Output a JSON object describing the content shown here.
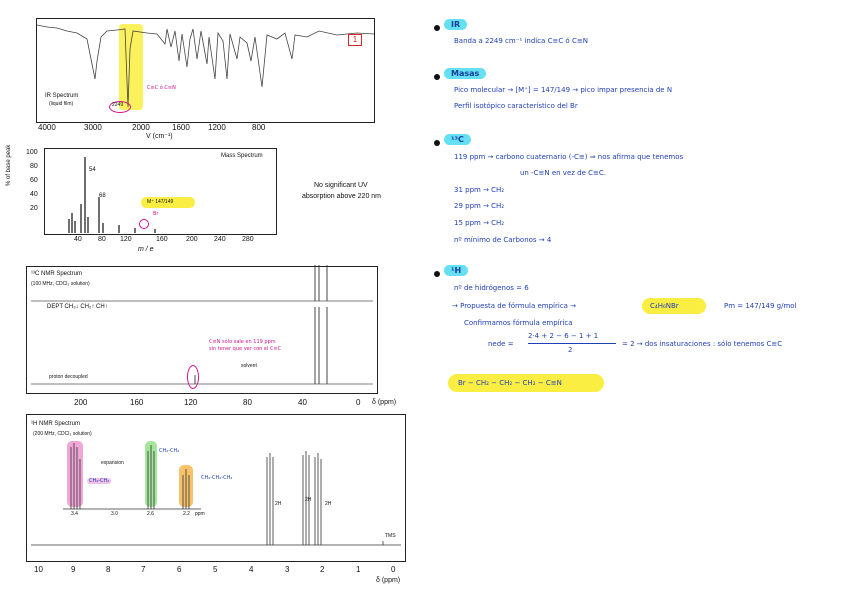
{
  "page_number": "1",
  "left": {
    "ir": {
      "title": "IR Spectrum",
      "subtitle": "(liquid film)",
      "ticks": [
        "4000",
        "3000",
        "2000",
        "1600",
        "1200",
        "800"
      ],
      "xlabel": "V (cm⁻¹)",
      "peak_label": "2249",
      "note": "C≡C ó C≡N"
    },
    "mass": {
      "title": "Mass Spectrum",
      "ylabel": "% of base peak",
      "yticks": [
        "100",
        "80",
        "60",
        "40",
        "20"
      ],
      "xticks": [
        "40",
        "80",
        "120",
        "160",
        "200",
        "240",
        "280"
      ],
      "xlabel": "m / e",
      "peak_54": "54",
      "peak_68": "68",
      "m_plus": "M⁺  147/149",
      "br_note": "Br"
    },
    "uv_note": [
      "No significant UV",
      "absorption above 220 nm"
    ],
    "c13": {
      "title": "¹³C NMR Spectrum",
      "subtitle": "(100 MHz, CDCl₃ solution)",
      "dept": "DEPT  CH₃↓ CH₂↑ CH↑",
      "decoupled": "proton decoupled",
      "solvent": "solvent",
      "xticks": [
        "200",
        "160",
        "120",
        "80",
        "40",
        "0"
      ],
      "xlabel": "δ (ppm)",
      "note": [
        "C≡N sólo sale en 119 ppm",
        "sin tener que ver con el C≡C"
      ]
    },
    "h1": {
      "title": "¹H NMR Spectrum",
      "subtitle": "(200 MHz, CDCl₃ solution)",
      "expansion": "expansion",
      "inset_ticks": [
        "3.4",
        "3.0",
        "2.6",
        "2.2",
        "ppm"
      ],
      "xticks": [
        "10",
        "9",
        "8",
        "7",
        "6",
        "5",
        "4",
        "3",
        "2",
        "1",
        "0"
      ],
      "xlabel": "δ (ppm)",
      "tms": "TMS",
      "integrals": [
        "2H",
        "2H",
        "2H"
      ],
      "tag_pink": "CH₂-CH₂",
      "tag_green": "CH₂-CH₂",
      "tag_orange": "CH₂-CH₂-CH₂"
    }
  },
  "right": {
    "ir": {
      "heading": "IR",
      "line": "Banda a  2249 cm⁻¹  indica   C≡C  ó  C≡N"
    },
    "masas": {
      "heading": "Masas",
      "lines": [
        "Pico  molecular → [M⁺] = 147/149 → pico impar  presencia  de  N",
        "Perfil isotópico característico  del  Br"
      ]
    },
    "c13": {
      "heading": "¹³C",
      "lines": [
        "119  ppm  →  carbono  cuaternario   (-C≡)  ⇒  nos  afirma  que  tenemos",
        "un  -C≡N  en  vez  de  C≡C.",
        "31  ppm  →  CH₂",
        "29  ppm  →  CH₂",
        "15  ppm  →  CH₂",
        "nº mínimo  de  Carbonos → 4"
      ]
    },
    "h1": {
      "heading": "¹H",
      "lines": [
        "nº de  hidrógenos = 6",
        "→ Propuesta  de  fórmula  empírica  →",
        "Pm = 147/149 g/mol",
        "Confirmamos  fórmula  empírica"
      ],
      "formula": "C₄H₆NBr",
      "nede_label": "nede =",
      "numerator": "2·4 + 2 − 6 − 1 + 1",
      "denominator": "2",
      "nede_result": "= 2 → dos insaturaciones : sólo tenemos  C≡C"
    },
    "answer": "Br − CH₂ − CH₂ − CH₂ − C≡N"
  }
}
